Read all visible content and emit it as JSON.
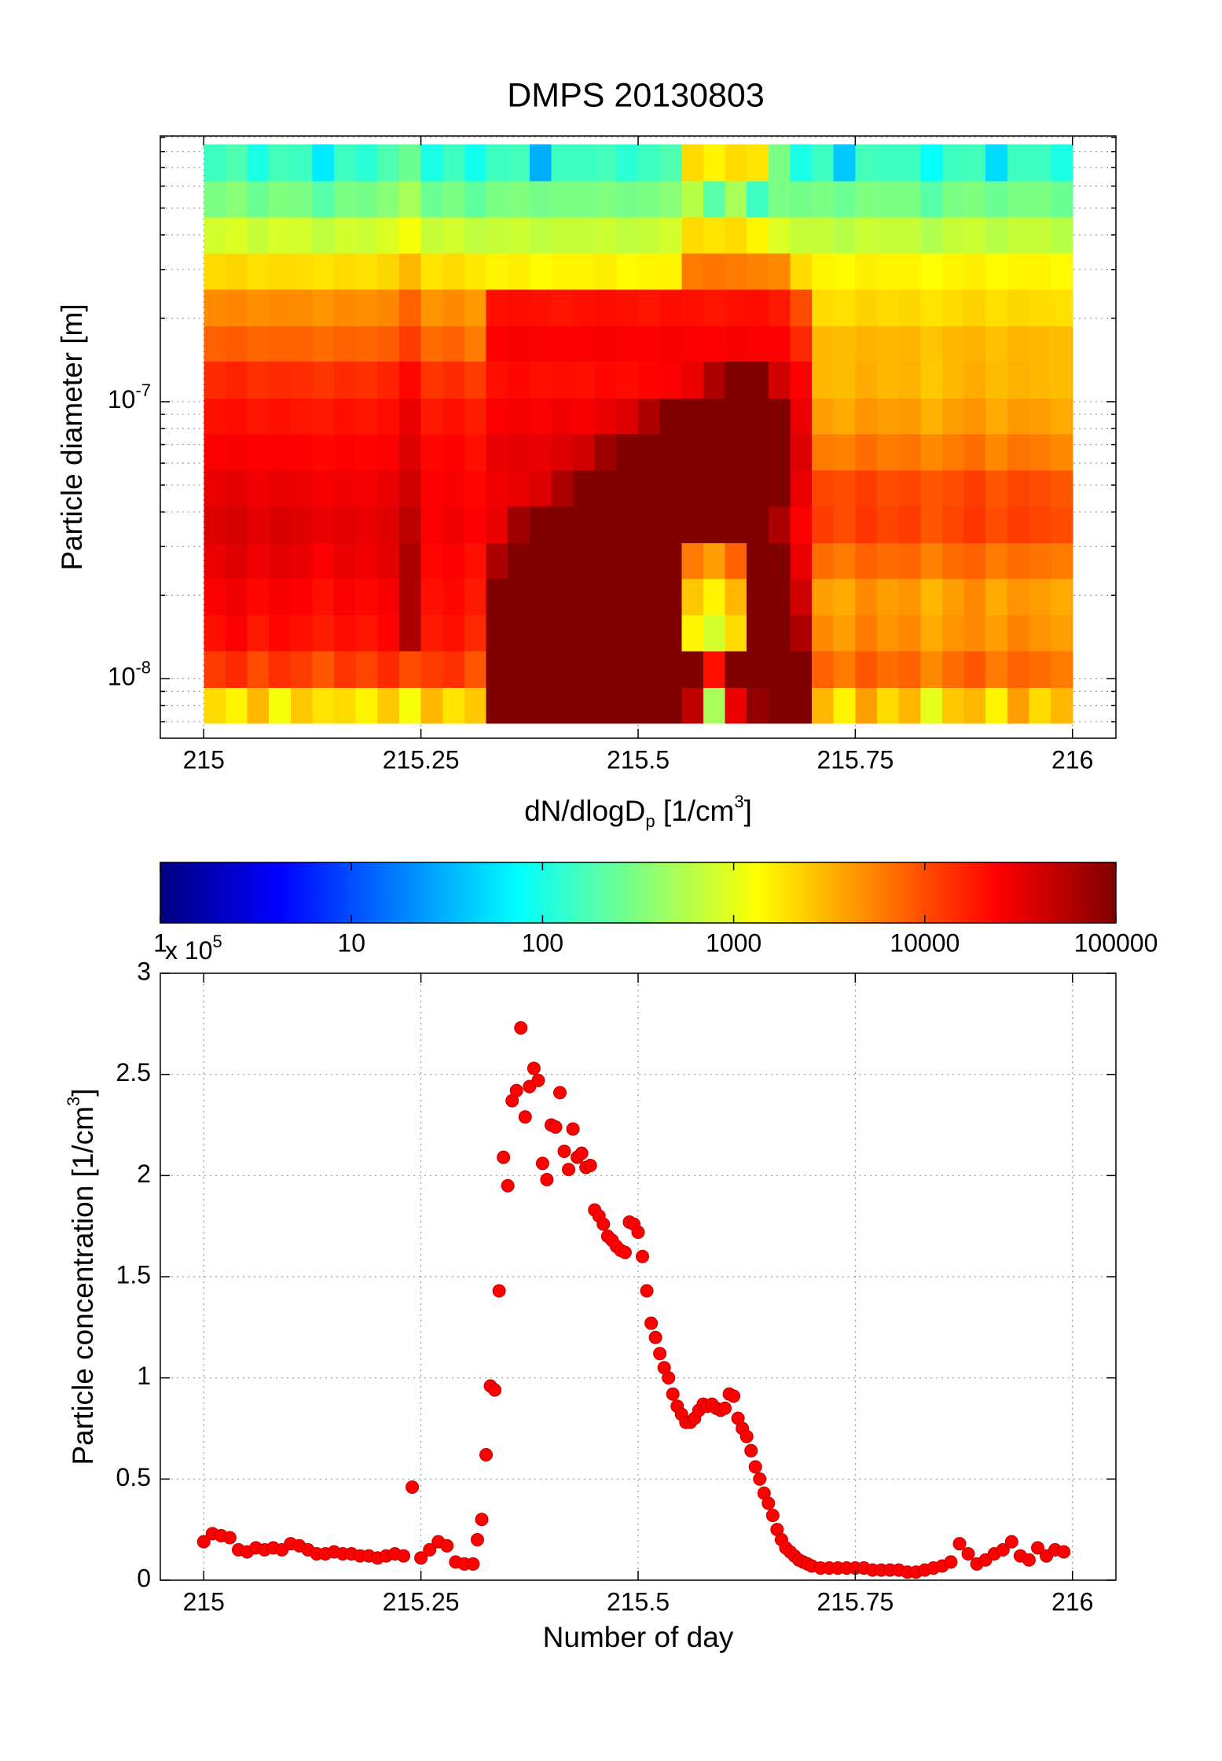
{
  "chart_data": [
    {
      "type": "heatmap",
      "title": "DMPS 20130803",
      "ylabel": "Particle diameter [m]",
      "xlim": [
        214.95,
        216.05
      ],
      "xticks": [
        215,
        215.25,
        215.5,
        215.75,
        216
      ],
      "ylim": [
        6.1e-09,
        9.1e-07
      ],
      "yscale": "log",
      "yticks": [
        {
          "value": 1e-08,
          "label": [
            "10",
            "-8"
          ]
        },
        {
          "value": 1e-07,
          "label": [
            "10",
            "-7"
          ]
        }
      ],
      "yminorticks": [
        7e-09,
        8e-09,
        9e-09,
        2e-08,
        3e-08,
        4e-08,
        5e-08,
        6e-08,
        7e-08,
        8e-08,
        9e-08,
        2e-07,
        3e-07,
        4e-07,
        5e-07,
        6e-07,
        7e-07,
        8e-07,
        9e-07
      ],
      "grid": true,
      "colormap": "jet",
      "xbins": [
        215,
        215.025,
        215.05,
        215.075,
        215.1,
        215.125,
        215.15,
        215.175,
        215.2,
        215.225,
        215.25,
        215.275,
        215.3,
        215.325,
        215.35,
        215.375,
        215.4,
        215.425,
        215.45,
        215.475,
        215.5,
        215.525,
        215.55,
        215.575,
        215.6,
        215.625,
        215.65,
        215.675,
        215.7,
        215.725,
        215.75,
        215.775,
        215.8,
        215.825,
        215.85,
        215.875,
        215.9,
        215.925,
        215.95,
        215.975,
        216
      ],
      "ybins": [
        6.9e-09,
        9.3e-09,
        1.26e-08,
        1.7e-08,
        2.3e-08,
        3.1e-08,
        4.2e-08,
        5.66e-08,
        7.66e-08,
        1.03e-07,
        1.4e-07,
        1.88e-07,
        2.55e-07,
        3.44e-07,
        4.65e-07,
        6.28e-07,
        8.5e-07
      ],
      "z": [
        [
          2000,
          1500,
          3000,
          1200,
          2500,
          1800,
          2000,
          1500,
          2500,
          1200,
          3000,
          1800,
          2500,
          100000,
          100000,
          100000,
          100000,
          100000,
          100000,
          100000,
          100000,
          100000,
          50000,
          500,
          30000,
          80000,
          100000,
          100000,
          3000,
          1500,
          4000,
          2000,
          3000,
          1000,
          2500,
          3000,
          1500,
          4000,
          2000,
          3000
        ],
        [
          12000,
          15000,
          10000,
          14000,
          12000,
          9000,
          13000,
          11000,
          15000,
          10000,
          12000,
          14000,
          9000,
          100000,
          100000,
          100000,
          100000,
          100000,
          100000,
          100000,
          100000,
          100000,
          100000,
          20000,
          100000,
          100000,
          100000,
          100000,
          8000,
          6000,
          9000,
          7000,
          8000,
          5000,
          7000,
          9000,
          6000,
          8000,
          7000,
          6000
        ],
        [
          20000,
          25000,
          18000,
          22000,
          20000,
          17000,
          21000,
          19000,
          23000,
          60000,
          18000,
          20000,
          15000,
          100000,
          100000,
          100000,
          100000,
          100000,
          100000,
          100000,
          100000,
          100000,
          1500,
          800,
          2000,
          100000,
          100000,
          60000,
          5000,
          4000,
          6000,
          4500,
          5000,
          3500,
          4500,
          5000,
          4000,
          5500,
          4500,
          4000
        ],
        [
          25000,
          28000,
          22000,
          26000,
          24000,
          20000,
          25000,
          22000,
          26000,
          60000,
          20000,
          22000,
          18000,
          100000,
          100000,
          100000,
          100000,
          100000,
          100000,
          100000,
          100000,
          100000,
          2500,
          1500,
          3000,
          100000,
          100000,
          40000,
          4000,
          3500,
          5000,
          4000,
          4500,
          3000,
          4000,
          5000,
          3500,
          4500,
          4000,
          3500
        ],
        [
          30000,
          35000,
          28000,
          32000,
          30000,
          25000,
          30000,
          28000,
          32000,
          60000,
          22000,
          25000,
          20000,
          60000,
          100000,
          100000,
          100000,
          100000,
          100000,
          100000,
          100000,
          100000,
          6000,
          4000,
          8000,
          100000,
          100000,
          30000,
          7000,
          6000,
          8000,
          7000,
          7500,
          5500,
          7000,
          8000,
          6000,
          7000,
          6500,
          6000
        ],
        [
          35000,
          38000,
          32000,
          36000,
          34000,
          30000,
          33000,
          30000,
          34000,
          50000,
          25000,
          28000,
          24000,
          30000,
          70000,
          100000,
          100000,
          100000,
          100000,
          100000,
          100000,
          100000,
          100000,
          100000,
          100000,
          100000,
          60000,
          25000,
          12000,
          10000,
          13000,
          11000,
          12000,
          9000,
          11000,
          13000,
          10000,
          12000,
          11000,
          10000
        ],
        [
          30000,
          32000,
          28000,
          30000,
          29000,
          26000,
          28000,
          27000,
          30000,
          40000,
          24000,
          26000,
          22000,
          28000,
          30000,
          35000,
          60000,
          100000,
          100000,
          100000,
          100000,
          100000,
          100000,
          100000,
          100000,
          100000,
          100000,
          30000,
          11000,
          10000,
          12000,
          10000,
          11000,
          9000,
          10000,
          12000,
          9000,
          11000,
          10000,
          9000
        ],
        [
          25000,
          26000,
          24000,
          25000,
          24000,
          22000,
          24000,
          23000,
          25000,
          35000,
          22000,
          24000,
          20000,
          30000,
          32000,
          30000,
          35000,
          40000,
          70000,
          100000,
          100000,
          100000,
          100000,
          100000,
          100000,
          100000,
          100000,
          35000,
          6000,
          5500,
          7000,
          6000,
          6500,
          5000,
          6000,
          7000,
          5000,
          6500,
          6000,
          5000
        ],
        [
          20000,
          21000,
          19000,
          20000,
          19000,
          18000,
          20000,
          19000,
          21000,
          30000,
          18000,
          20000,
          17000,
          25000,
          27000,
          25000,
          28000,
          26000,
          30000,
          35000,
          60000,
          100000,
          100000,
          100000,
          100000,
          100000,
          100000,
          30000,
          4000,
          3500,
          4500,
          4000,
          4200,
          3200,
          4000,
          4500,
          3500,
          4200,
          4000,
          3500
        ],
        [
          15000,
          16000,
          14000,
          15000,
          14500,
          13000,
          15000,
          14000,
          16000,
          22000,
          13000,
          15000,
          12000,
          20000,
          22000,
          20000,
          21000,
          20000,
          22000,
          21000,
          23000,
          25000,
          30000,
          60000,
          100000,
          100000,
          40000,
          25000,
          3000,
          2800,
          3500,
          3000,
          3200,
          2500,
          3000,
          3500,
          2800,
          3200,
          3000,
          2800
        ],
        [
          8000,
          8500,
          7500,
          8000,
          7800,
          7000,
          8000,
          7500,
          8500,
          12000,
          7000,
          8000,
          6000,
          24000,
          26000,
          25000,
          24000,
          25000,
          26000,
          25000,
          24000,
          26000,
          25000,
          24000,
          26000,
          25000,
          24000,
          15000,
          3000,
          2800,
          3200,
          3000,
          3100,
          2600,
          3000,
          3200,
          2700,
          3100,
          3000,
          2800
        ],
        [
          5000,
          5200,
          4800,
          5000,
          4900,
          4500,
          5000,
          4800,
          5200,
          8000,
          4500,
          5000,
          4200,
          20000,
          21000,
          20000,
          19000,
          20000,
          21000,
          20000,
          19000,
          21000,
          20000,
          19000,
          20000,
          21000,
          18000,
          10000,
          2000,
          1900,
          2200,
          2000,
          2100,
          1800,
          2000,
          2200,
          1900,
          2100,
          2000,
          1900
        ],
        [
          2000,
          2100,
          1900,
          2000,
          1950,
          1800,
          2000,
          1900,
          2100,
          3000,
          1800,
          2000,
          1700,
          1500,
          1600,
          1400,
          1500,
          1500,
          1600,
          1400,
          1500,
          1500,
          6000,
          6500,
          6000,
          5500,
          5000,
          2000,
          1500,
          1400,
          1600,
          1500,
          1500,
          1300,
          1500,
          1600,
          1400,
          1500,
          1500,
          1400
        ],
        [
          800,
          900,
          700,
          850,
          800,
          650,
          800,
          750,
          900,
          1200,
          700,
          800,
          650,
          700,
          750,
          650,
          700,
          700,
          750,
          650,
          700,
          800,
          2000,
          1800,
          2000,
          1500,
          900,
          700,
          700,
          600,
          750,
          700,
          700,
          550,
          700,
          750,
          600,
          700,
          700,
          600
        ],
        [
          300,
          350,
          250,
          320,
          300,
          200,
          300,
          280,
          350,
          500,
          250,
          300,
          220,
          300,
          320,
          280,
          300,
          300,
          320,
          280,
          300,
          350,
          600,
          200,
          500,
          150,
          300,
          280,
          300,
          250,
          320,
          300,
          300,
          200,
          300,
          320,
          250,
          300,
          300,
          250
        ],
        [
          150,
          180,
          100,
          160,
          150,
          60,
          150,
          120,
          180,
          250,
          100,
          150,
          90,
          150,
          160,
          30,
          150,
          150,
          160,
          120,
          150,
          180,
          2000,
          1500,
          2000,
          1800,
          300,
          100,
          150,
          40,
          160,
          150,
          150,
          80,
          150,
          160,
          50,
          150,
          150,
          100
        ]
      ],
      "colorbar": {
        "label": [
          "dN/dlogD",
          "p",
          " [1/cm",
          "3",
          "]"
        ],
        "lim": [
          1,
          100000
        ],
        "scale": "log",
        "ticks": [
          1,
          10,
          100,
          1000,
          10000,
          100000
        ]
      }
    },
    {
      "type": "scatter",
      "xlabel": "Number of day",
      "ylabel": [
        "Particle concentration [1/cm",
        "3",
        "]"
      ],
      "y_multiplier": [
        "x 10",
        "5"
      ],
      "color": "#ff0000",
      "grid": true,
      "xlim": [
        214.95,
        216.05
      ],
      "xticks": [
        215,
        215.25,
        215.5,
        215.75,
        216
      ],
      "ylim": [
        0,
        3
      ],
      "yticks": [
        0,
        0.5,
        1,
        1.5,
        2,
        2.5,
        3
      ],
      "x": [
        215,
        215.01,
        215.02,
        215.03,
        215.04,
        215.05,
        215.06,
        215.07,
        215.08,
        215.09,
        215.1,
        215.11,
        215.12,
        215.13,
        215.14,
        215.15,
        215.16,
        215.17,
        215.18,
        215.19,
        215.2,
        215.21,
        215.22,
        215.23,
        215.24,
        215.25,
        215.26,
        215.27,
        215.28,
        215.29,
        215.3,
        215.31,
        215.315,
        215.32,
        215.325,
        215.33,
        215.335,
        215.34,
        215.345,
        215.35,
        215.355,
        215.36,
        215.365,
        215.37,
        215.375,
        215.38,
        215.385,
        215.39,
        215.395,
        215.4,
        215.405,
        215.41,
        215.415,
        215.42,
        215.425,
        215.43,
        215.435,
        215.44,
        215.445,
        215.45,
        215.455,
        215.46,
        215.465,
        215.47,
        215.475,
        215.48,
        215.485,
        215.49,
        215.495,
        215.5,
        215.505,
        215.51,
        215.515,
        215.52,
        215.525,
        215.53,
        215.535,
        215.54,
        215.545,
        215.55,
        215.555,
        215.56,
        215.565,
        215.57,
        215.575,
        215.58,
        215.585,
        215.59,
        215.595,
        215.6,
        215.605,
        215.61,
        215.615,
        215.62,
        215.625,
        215.63,
        215.635,
        215.64,
        215.645,
        215.65,
        215.655,
        215.66,
        215.665,
        215.67,
        215.675,
        215.68,
        215.685,
        215.69,
        215.695,
        215.7,
        215.71,
        215.72,
        215.73,
        215.74,
        215.75,
        215.76,
        215.77,
        215.78,
        215.79,
        215.8,
        215.81,
        215.82,
        215.83,
        215.84,
        215.85,
        215.86,
        215.87,
        215.88,
        215.89,
        215.9,
        215.91,
        215.92,
        215.93,
        215.94,
        215.95,
        215.96,
        215.97,
        215.98,
        215.99
      ],
      "values": [
        0.19,
        0.23,
        0.22,
        0.21,
        0.15,
        0.14,
        0.16,
        0.15,
        0.16,
        0.15,
        0.18,
        0.17,
        0.15,
        0.13,
        0.13,
        0.14,
        0.13,
        0.13,
        0.12,
        0.12,
        0.11,
        0.12,
        0.13,
        0.12,
        0.46,
        0.11,
        0.15,
        0.19,
        0.17,
        0.09,
        0.08,
        0.08,
        0.2,
        0.3,
        0.62,
        0.96,
        0.94,
        1.43,
        2.09,
        1.95,
        2.37,
        2.42,
        2.73,
        2.29,
        2.44,
        2.53,
        2.47,
        2.06,
        1.98,
        2.25,
        2.24,
        2.41,
        2.12,
        2.03,
        2.23,
        2.09,
        2.11,
        2.04,
        2.05,
        1.83,
        1.8,
        1.76,
        1.7,
        1.68,
        1.65,
        1.63,
        1.62,
        1.77,
        1.76,
        1.72,
        1.6,
        1.43,
        1.27,
        1.2,
        1.12,
        1.05,
        1,
        0.92,
        0.86,
        0.82,
        0.78,
        0.78,
        0.8,
        0.84,
        0.87,
        0.86,
        0.87,
        0.85,
        0.84,
        0.85,
        0.92,
        0.91,
        0.8,
        0.75,
        0.71,
        0.64,
        0.56,
        0.5,
        0.43,
        0.38,
        0.32,
        0.25,
        0.2,
        0.16,
        0.14,
        0.12,
        0.1,
        0.09,
        0.08,
        0.07,
        0.06,
        0.06,
        0.06,
        0.06,
        0.06,
        0.06,
        0.05,
        0.05,
        0.05,
        0.05,
        0.04,
        0.04,
        0.05,
        0.06,
        0.07,
        0.09,
        0.18,
        0.13,
        0.08,
        0.1,
        0.13,
        0.15,
        0.19,
        0.12,
        0.1,
        0.16,
        0.12,
        0.15,
        0.14
      ]
    }
  ]
}
